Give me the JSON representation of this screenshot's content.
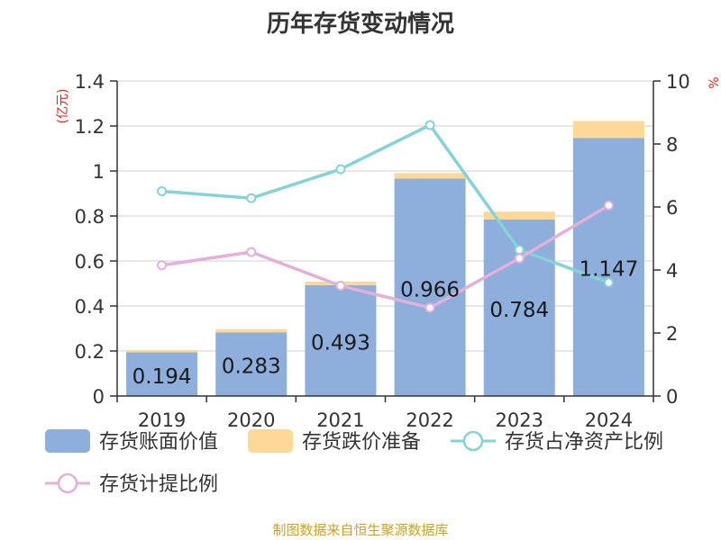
{
  "chart_data": {
    "type": "bar",
    "title": "历年存货变动情况",
    "categories": [
      "2019",
      "2020",
      "2021",
      "2022",
      "2023",
      "2024"
    ],
    "y_left": {
      "unit_label": "(亿元)",
      "range": [
        0,
        1.4
      ],
      "ticks": [
        "0",
        "0.2",
        "0.4",
        "0.6",
        "0.8",
        "1",
        "1.2",
        "1.4"
      ]
    },
    "y_right": {
      "unit_label": "%",
      "range": [
        0,
        10
      ],
      "ticks": [
        "0",
        "2",
        "4",
        "6",
        "8",
        "10"
      ]
    },
    "grid": true,
    "legend_position": "bottom",
    "stacked_bars": [
      {
        "name": "存货账面价值",
        "color": "#8eaedb",
        "values": [
          0.194,
          0.283,
          0.493,
          0.966,
          0.784,
          1.147
        ],
        "labels": [
          "0.194",
          "0.283",
          "0.493",
          "0.966",
          "0.784",
          "1.147"
        ]
      },
      {
        "name": "存货跌价准备",
        "color": "#fdd896",
        "values": [
          0.01,
          0.014,
          0.015,
          0.025,
          0.035,
          0.075
        ]
      }
    ],
    "line_series": [
      {
        "name": "存货占净资产比例",
        "color": "#84d3d6",
        "axis": "right",
        "values": [
          6.5,
          6.28,
          7.2,
          8.6,
          4.64,
          3.6
        ]
      },
      {
        "name": "存货计提比例",
        "color": "#e4afd8",
        "axis": "right",
        "values": [
          4.15,
          4.57,
          3.5,
          2.8,
          4.37,
          6.05
        ]
      }
    ],
    "source": "制图数据来自恒生聚源数据库"
  }
}
